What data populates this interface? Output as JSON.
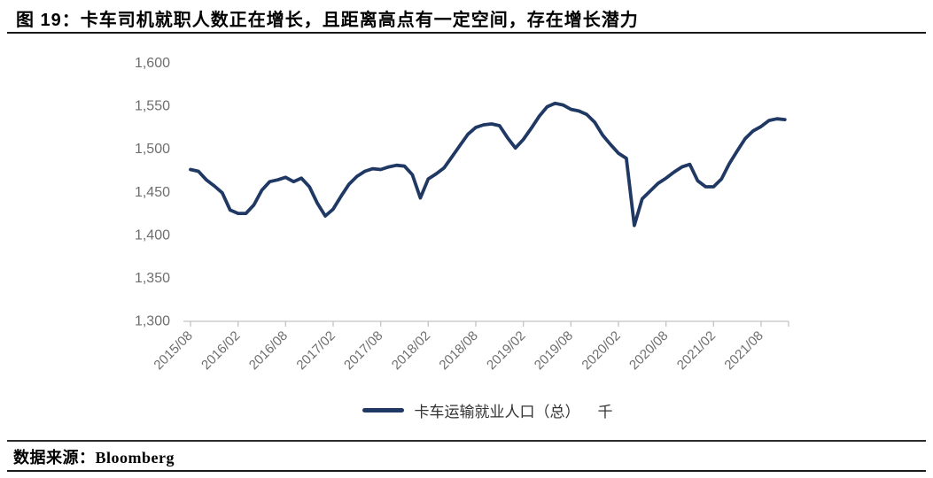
{
  "header": {
    "title": "图 19：卡车司机就职人数正在增长，且距离高点有一定空间，存在增长潜力"
  },
  "footer": {
    "source_label": "数据来源：Bloomberg"
  },
  "chart_data": {
    "type": "line",
    "title": "卡车运输就业人口（总）",
    "xlabel": "",
    "ylabel": "",
    "unit": "千",
    "grid": false,
    "ylim": [
      1300,
      1600
    ],
    "y_tick_values": [
      1600,
      1550,
      1500,
      1450,
      1400,
      1350,
      1300
    ],
    "y_tick_labels": [
      "1,600",
      "1,550",
      "1,500",
      "1,450",
      "1,400",
      "1,350",
      "1,300"
    ],
    "x_tick_labels": [
      "2015/08",
      "2016/02",
      "2016/08",
      "2017/02",
      "2017/08",
      "2018/02",
      "2018/08",
      "2019/02",
      "2019/08",
      "2020/02",
      "2020/08",
      "2021/02",
      "2021/08"
    ],
    "legend": {
      "label": "卡车运输就业人口（总）",
      "unit": "千",
      "position": "bottom"
    },
    "x": [
      "2015/08",
      "2015/09",
      "2015/10",
      "2015/11",
      "2015/12",
      "2016/01",
      "2016/02",
      "2016/03",
      "2016/04",
      "2016/05",
      "2016/06",
      "2016/07",
      "2016/08",
      "2016/09",
      "2016/10",
      "2016/11",
      "2016/12",
      "2017/01",
      "2017/02",
      "2017/03",
      "2017/04",
      "2017/05",
      "2017/06",
      "2017/07",
      "2017/08",
      "2017/09",
      "2017/10",
      "2017/11",
      "2017/12",
      "2018/01",
      "2018/02",
      "2018/03",
      "2018/04",
      "2018/05",
      "2018/06",
      "2018/07",
      "2018/08",
      "2018/09",
      "2018/10",
      "2018/11",
      "2018/12",
      "2019/01",
      "2019/02",
      "2019/03",
      "2019/04",
      "2019/05",
      "2019/06",
      "2019/07",
      "2019/08",
      "2019/09",
      "2019/10",
      "2019/11",
      "2019/12",
      "2020/01",
      "2020/02",
      "2020/03",
      "2020/04",
      "2020/05",
      "2020/06",
      "2020/07",
      "2020/08",
      "2020/09",
      "2020/10",
      "2020/11",
      "2020/12",
      "2021/01",
      "2021/02",
      "2021/03",
      "2021/04",
      "2021/05",
      "2021/06",
      "2021/07",
      "2021/08",
      "2021/09",
      "2021/10",
      "2021/11"
    ],
    "series": [
      {
        "name": "卡车运输就业人口（总） 千",
        "color": "#1f3864",
        "values": [
          1475,
          1473,
          1463,
          1456,
          1448,
          1428,
          1424,
          1424,
          1434,
          1451,
          1461,
          1463,
          1466,
          1461,
          1465,
          1455,
          1436,
          1421,
          1429,
          1444,
          1458,
          1467,
          1473,
          1476,
          1475,
          1478,
          1480,
          1479,
          1469,
          1442,
          1464,
          1470,
          1477,
          1490,
          1503,
          1516,
          1524,
          1527,
          1528,
          1526,
          1512,
          1500,
          1510,
          1523,
          1537,
          1548,
          1552,
          1550,
          1545,
          1543,
          1539,
          1530,
          1515,
          1504,
          1494,
          1488,
          1410,
          1441,
          1450,
          1459,
          1465,
          1472,
          1478,
          1481,
          1462,
          1455,
          1455,
          1464,
          1482,
          1497,
          1511,
          1520,
          1525,
          1532,
          1534,
          1533
        ]
      }
    ],
    "colors": {
      "line": "#1f3864",
      "axis": "#c3c3c3",
      "tick_text": "#6e6e6e"
    }
  }
}
